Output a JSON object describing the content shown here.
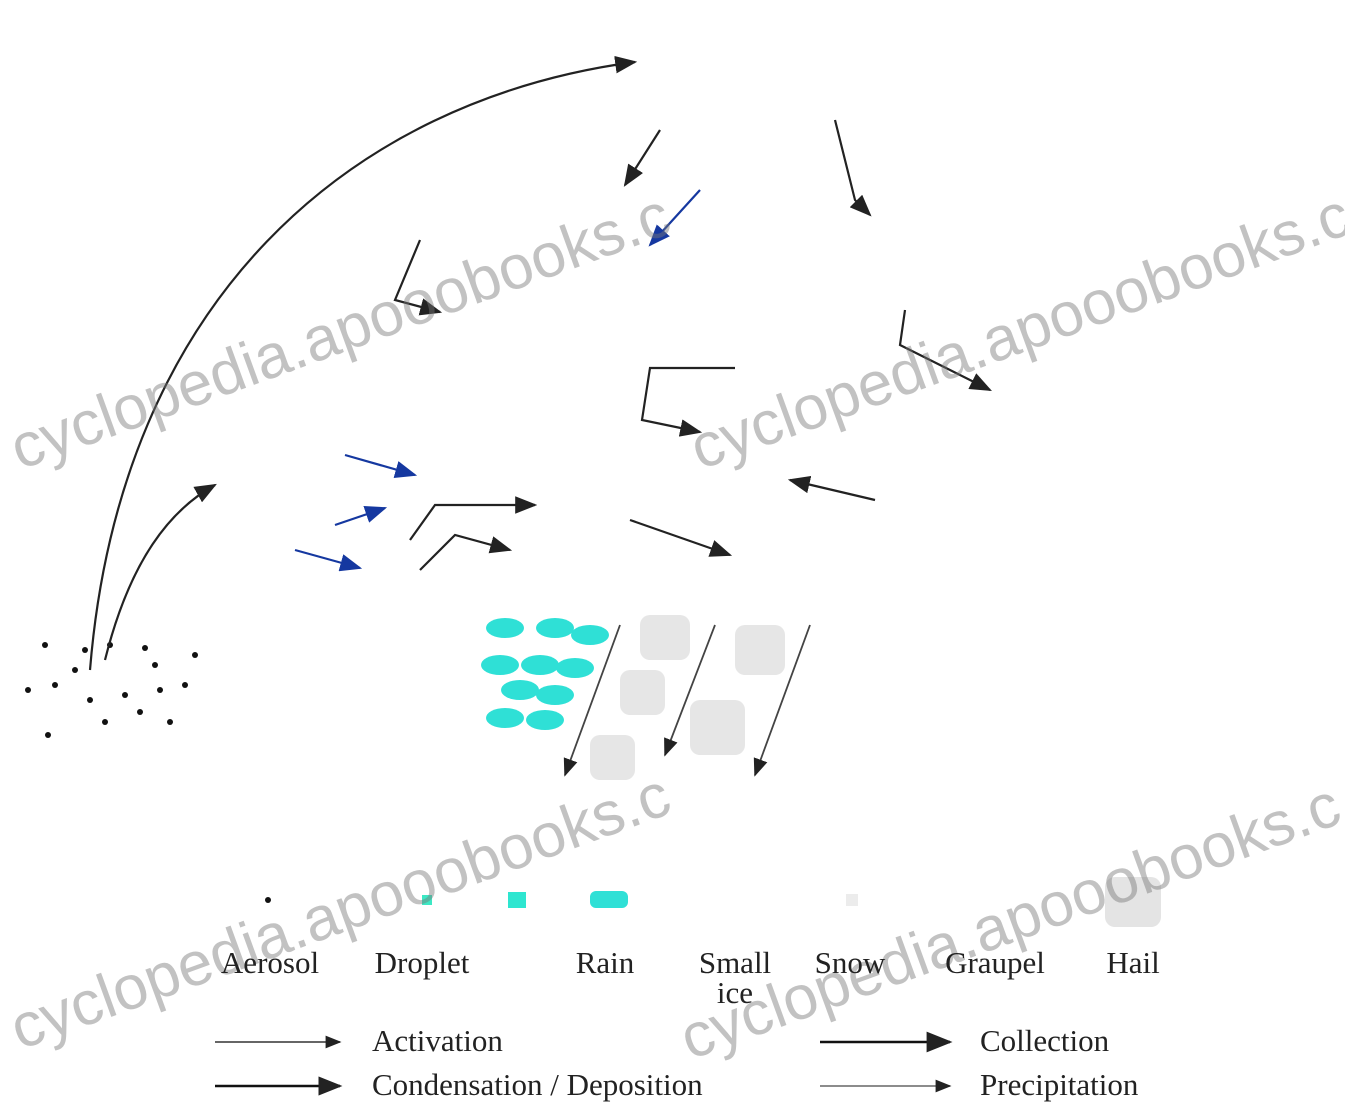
{
  "particles": [
    {
      "label": "Aerosol"
    },
    {
      "label": "Droplet"
    },
    {
      "label": "Rain"
    },
    {
      "label": "Small ice"
    },
    {
      "label": "Snow"
    },
    {
      "label": "Graupel"
    },
    {
      "label": "Hail"
    }
  ],
  "processes": [
    {
      "label": "Activation"
    },
    {
      "label": "Condensation / Deposition"
    },
    {
      "label": "Collection"
    },
    {
      "label": "Precipitation"
    }
  ],
  "watermark": "cyclopedia.apooobooks.c"
}
